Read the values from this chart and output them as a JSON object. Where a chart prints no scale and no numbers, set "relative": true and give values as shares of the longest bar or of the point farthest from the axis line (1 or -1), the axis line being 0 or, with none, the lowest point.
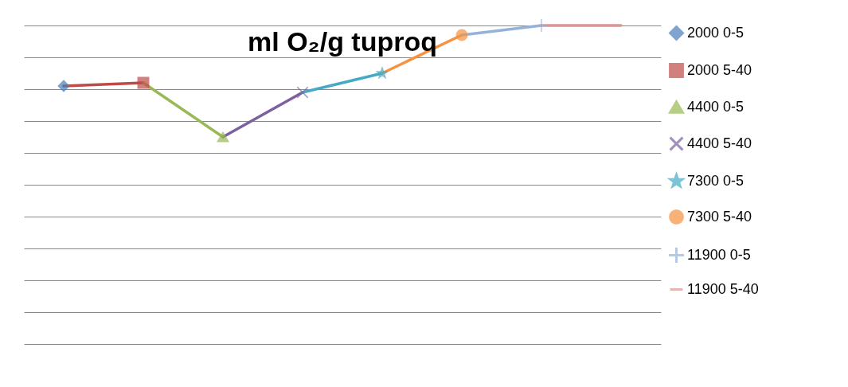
{
  "chart_data": {
    "type": "line",
    "title": "ml O₂/g tuproq",
    "relative": true,
    "categories": [
      null,
      null,
      null,
      null,
      null,
      null,
      null,
      null
    ],
    "series": [
      {
        "name": "2000 0-5",
        "color": "#4a7ebb",
        "marker": "diamond",
        "values": [
          0.81,
          null,
          null,
          null,
          null,
          null,
          null,
          null
        ]
      },
      {
        "name": "2000 5-40",
        "color": "#be4b48",
        "marker": "square",
        "values": [
          0.81,
          0.82,
          null,
          null,
          null,
          null,
          null,
          null
        ]
      },
      {
        "name": "4400 0-5",
        "color": "#98b954",
        "marker": "triangle",
        "values": [
          null,
          0.82,
          0.65,
          null,
          null,
          null,
          null,
          null
        ]
      },
      {
        "name": "4400 5-40",
        "color": "#7d60a0",
        "marker": "cross",
        "values": [
          null,
          null,
          0.65,
          0.79,
          null,
          null,
          null,
          null
        ]
      },
      {
        "name": "7300 0-5",
        "color": "#46aac5",
        "marker": "star",
        "values": [
          null,
          null,
          null,
          0.79,
          0.85,
          null,
          null,
          null
        ]
      },
      {
        "name": "7300 5-40",
        "color": "#f69240",
        "marker": "circle",
        "values": [
          null,
          null,
          null,
          null,
          0.85,
          0.97,
          null,
          null
        ]
      },
      {
        "name": "11900  0-5",
        "color": "#95b3d7",
        "marker": "plus",
        "values": [
          null,
          null,
          null,
          null,
          null,
          0.97,
          1,
          null
        ]
      },
      {
        "name": "11900 5-40",
        "color": "#d99694",
        "marker": "none",
        "values": [
          null,
          null,
          null,
          null,
          null,
          null,
          1,
          1
        ]
      }
    ],
    "grid": true,
    "legend": "right"
  }
}
